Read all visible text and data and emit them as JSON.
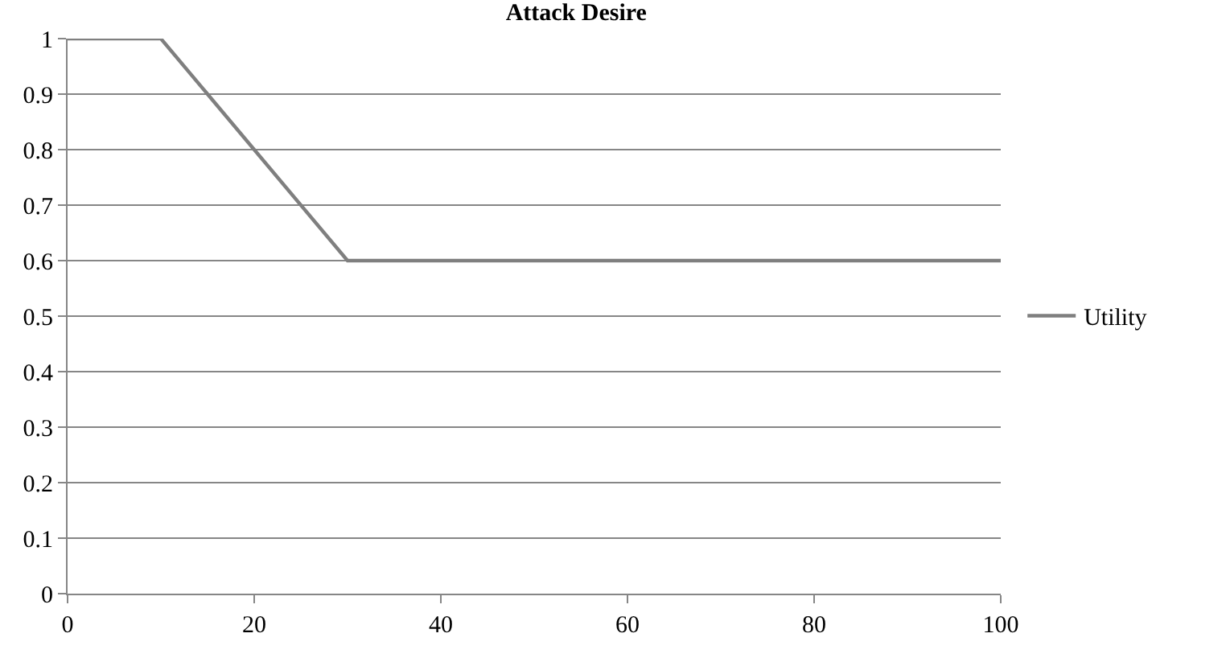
{
  "chart_data": {
    "type": "line",
    "title": "Attack Desire",
    "x": [
      0,
      10,
      30,
      100
    ],
    "series": [
      {
        "name": "Utility",
        "color": "#7f7f7f",
        "values": [
          1,
          1,
          0.6,
          0.6
        ]
      }
    ],
    "xlim": [
      0,
      100
    ],
    "xticks": [
      0,
      20,
      40,
      60,
      80,
      100
    ],
    "ylim": [
      0,
      1
    ],
    "yticks": [
      0,
      {
        "value": 0.1,
        "label": "0.1"
      },
      {
        "value": 0.2,
        "label": "0.2"
      },
      {
        "value": 0.3,
        "label": "0.3"
      },
      {
        "value": 0.4,
        "label": "0.4"
      },
      {
        "value": 0.5,
        "label": "0.5"
      },
      {
        "value": 0.6,
        "label": "0.6"
      },
      {
        "value": 0.7,
        "label": "0.7"
      },
      {
        "value": 0.8,
        "label": "0.8"
      },
      {
        "value": 0.9,
        "label": "0.9"
      },
      1
    ],
    "grid": "y",
    "legend": "right",
    "marker": "none",
    "line_style": "solid"
  }
}
